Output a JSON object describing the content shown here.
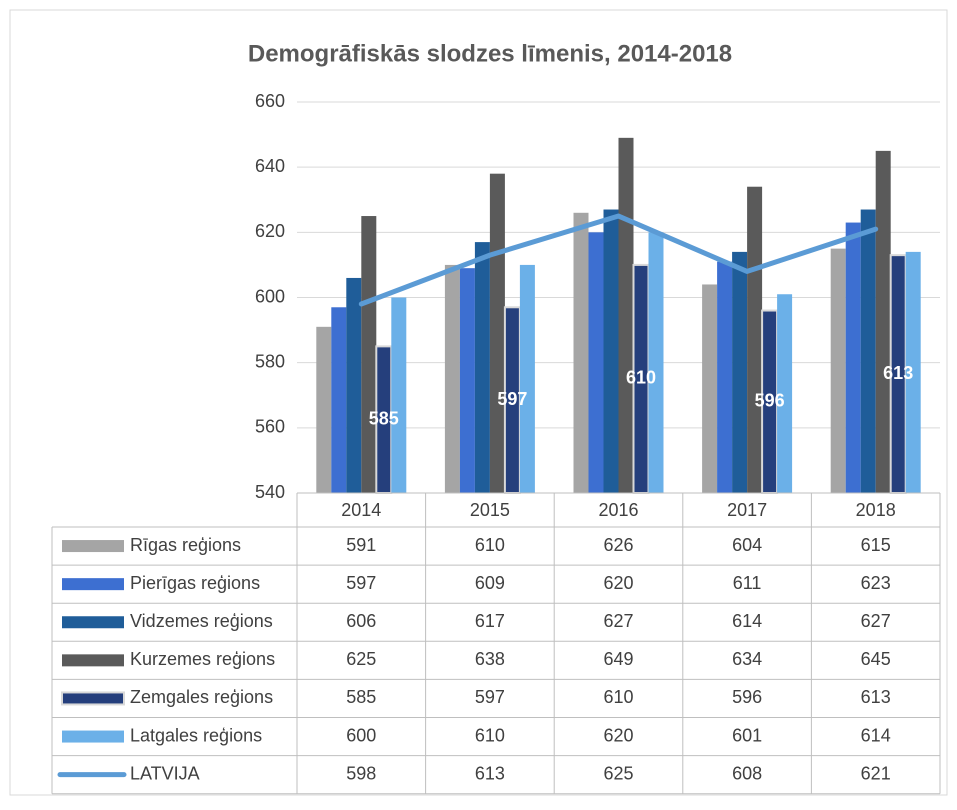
{
  "chart_data": {
    "type": "bar",
    "title": "Demogrāfiskās slodzes līmenis, 2014-2018",
    "categories": [
      "2014",
      "2015",
      "2016",
      "2017",
      "2018"
    ],
    "ylim": [
      540,
      660
    ],
    "yticks": [
      540,
      560,
      580,
      600,
      620,
      640,
      660
    ],
    "grid": true,
    "series": [
      {
        "name": "Rīgas reģions",
        "color": "#a5a5a5",
        "values": [
          591,
          610,
          626,
          604,
          615
        ]
      },
      {
        "name": "Pierīgas reģions",
        "color": "#3d6fd1",
        "values": [
          597,
          609,
          620,
          611,
          623
        ]
      },
      {
        "name": "Vidzemes reģions",
        "color": "#1f5d99",
        "values": [
          606,
          617,
          627,
          614,
          627
        ]
      },
      {
        "name": "Kurzemes reģions",
        "color": "#5a5a5a",
        "values": [
          625,
          638,
          649,
          634,
          645
        ]
      },
      {
        "name": "Zemgales reģions",
        "color": "#253f7c",
        "values": [
          585,
          597,
          610,
          596,
          613
        ],
        "data_labels": true
      },
      {
        "name": "Latgales reģions",
        "color": "#6bb0e8",
        "values": [
          600,
          610,
          620,
          601,
          614
        ]
      },
      {
        "name": "LATVIJA",
        "color": "#5b9bd5",
        "values": [
          598,
          613,
          625,
          608,
          621
        ],
        "type": "line"
      }
    ]
  }
}
